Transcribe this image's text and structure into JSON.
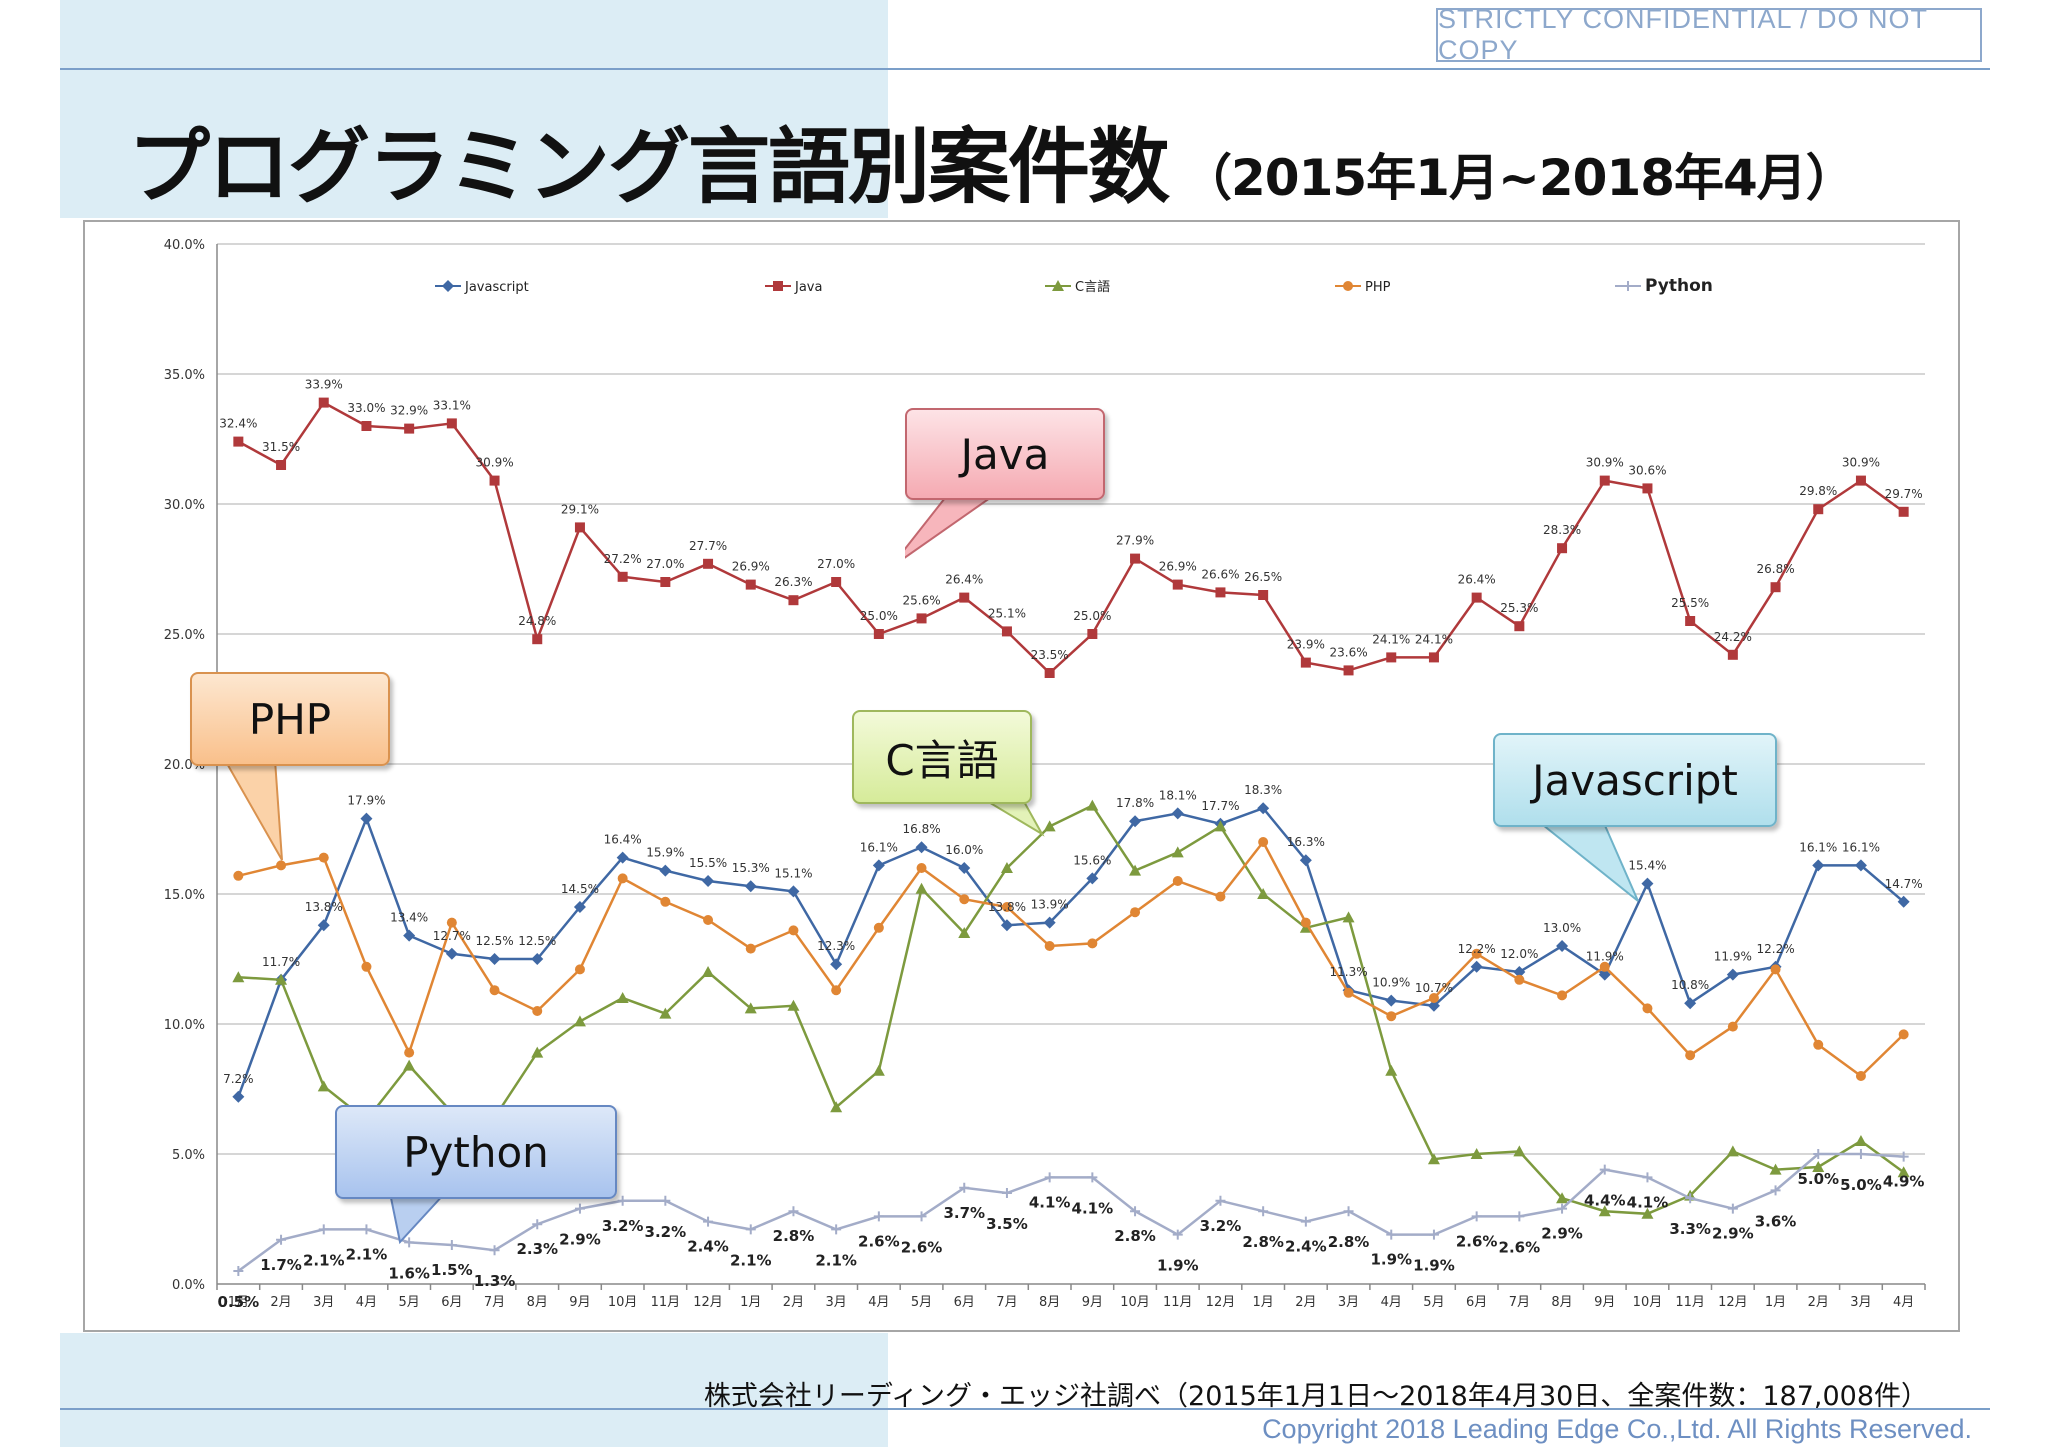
{
  "header": {
    "confidential": "STRICTLY CONFIDENTIAL  /  DO NOT COPY",
    "title_main": "プログラミング言語別案件数",
    "title_sub": "（2015年1月~2018年4月）"
  },
  "footer": {
    "source": "株式会社リーディング・エッジ社調べ（2015年1月1日～2018年4月30日、全案件数：187,008件）",
    "copyright": "Copyright 2018 Leading Edge Co.,Ltd. All Rights Reserved."
  },
  "callouts": {
    "java": "Java",
    "php": "PHP",
    "c": "C言語",
    "javascript": "Javascript",
    "python": "Python"
  },
  "chart_data": {
    "type": "line",
    "title": "",
    "xlabel": "",
    "ylabel": "",
    "ylim": [
      0,
      40
    ],
    "y_ticks": [
      "0.0%",
      "5.0%",
      "10.0%",
      "15.0%",
      "20.0%",
      "25.0%",
      "30.0%",
      "35.0%",
      "40.0%"
    ],
    "x": [
      "1月",
      "2月",
      "3月",
      "4月",
      "5月",
      "6月",
      "7月",
      "8月",
      "9月",
      "10月",
      "11月",
      "12月",
      "1月",
      "2月",
      "3月",
      "4月",
      "5月",
      "6月",
      "7月",
      "8月",
      "9月",
      "10月",
      "11月",
      "12月",
      "1月",
      "2月",
      "3月",
      "4月",
      "5月",
      "6月",
      "7月",
      "8月",
      "9月",
      "10月",
      "11月",
      "12月",
      "1月",
      "2月",
      "3月",
      "4月"
    ],
    "grid": true,
    "legend_position": "top",
    "series": [
      {
        "name": "Javascript",
        "color": "#3f68a4",
        "marker": "diamond",
        "values": [
          7.2,
          11.7,
          13.8,
          17.9,
          13.4,
          12.7,
          12.5,
          12.5,
          14.5,
          16.4,
          15.9,
          15.5,
          15.3,
          15.1,
          12.3,
          16.1,
          16.8,
          16.0,
          13.8,
          13.9,
          15.6,
          17.8,
          18.1,
          17.7,
          18.3,
          16.3,
          11.3,
          10.9,
          10.7,
          12.2,
          12.0,
          13.0,
          11.9,
          15.4,
          10.8,
          11.9,
          12.2,
          16.1,
          16.1,
          14.7
        ],
        "labels": [
          "7.2%",
          "11.7%",
          "13.8%",
          "17.9%",
          "13.4%",
          "12.7%",
          "12.5%",
          "12.5%",
          "14.5%",
          "16.4%",
          "15.9%",
          "15.5%",
          "15.3%",
          "15.1%",
          "12.3%",
          "16.1%",
          "16.8%",
          "16.0%",
          "13.8%",
          "13.9%",
          "15.6%",
          "17.8%",
          "18.1%",
          "17.7%",
          "18.3%",
          "16.3%",
          "11.3%",
          "10.9%",
          "10.7%",
          "12.2%",
          "12.0%",
          "13.0%",
          "11.9%",
          "15.4%",
          "10.8%",
          "11.9%",
          "12.2%",
          "16.1%",
          "16.1%",
          "14.7%"
        ]
      },
      {
        "name": "Java",
        "color": "#b0393b",
        "marker": "square",
        "values": [
          32.4,
          31.5,
          33.9,
          33.0,
          32.9,
          33.1,
          30.9,
          24.8,
          29.1,
          27.2,
          27.0,
          27.7,
          26.9,
          26.3,
          27.0,
          25.0,
          25.6,
          26.4,
          25.1,
          23.5,
          25.0,
          27.9,
          26.9,
          26.6,
          26.5,
          23.9,
          23.6,
          24.1,
          24.1,
          26.4,
          25.3,
          28.3,
          30.9,
          30.6,
          25.5,
          24.2,
          26.8,
          29.8,
          30.9,
          29.7
        ],
        "labels": [
          "32.4%",
          "31.5%",
          "33.9%",
          "33.0%",
          "32.9%",
          "33.1%",
          "30.9%",
          "24.8%",
          "29.1%",
          "27.2%",
          "27.0%",
          "27.7%",
          "26.9%",
          "26.3%",
          "27.0%",
          "25.0%",
          "25.6%",
          "26.4%",
          "25.1%",
          "23.5%",
          "25.0%",
          "27.9%",
          "26.9%",
          "26.6%",
          "26.5%",
          "23.9%",
          "23.6%",
          "24.1%",
          "24.1%",
          "26.4%",
          "25.3%",
          "28.3%",
          "30.9%",
          "30.6%",
          "25.5%",
          "24.2%",
          "26.8%",
          "29.8%",
          "30.9%",
          "29.7%"
        ]
      },
      {
        "name": "C言語",
        "color": "#7d9a3e",
        "marker": "triangle",
        "values": [
          11.8,
          11.7,
          7.6,
          6.3,
          8.4,
          6.6,
          6.4,
          8.9,
          10.1,
          11.0,
          10.4,
          12.0,
          10.6,
          10.7,
          6.8,
          8.2,
          15.2,
          13.5,
          16.0,
          17.6,
          18.4,
          15.9,
          16.6,
          17.6,
          15.0,
          13.7,
          14.1,
          8.2,
          4.8,
          5.0,
          5.1,
          3.3,
          2.8,
          2.7,
          3.4,
          5.1,
          4.4,
          4.5,
          5.5,
          4.3
        ],
        "labels": []
      },
      {
        "name": "PHP",
        "color": "#e08634",
        "marker": "circle",
        "values": [
          15.7,
          16.1,
          16.4,
          12.2,
          8.9,
          13.9,
          11.3,
          10.5,
          12.1,
          15.6,
          14.7,
          14.0,
          12.9,
          13.6,
          11.3,
          13.7,
          16.0,
          14.8,
          14.5,
          13.0,
          13.1,
          14.3,
          15.5,
          14.9,
          17.0,
          13.9,
          11.2,
          10.3,
          11.0,
          12.7,
          11.7,
          11.1,
          12.2,
          10.6,
          8.8,
          9.9,
          12.1,
          9.2,
          8.0,
          9.6
        ],
        "labels": []
      },
      {
        "name": "Python",
        "color": "#a3acc8",
        "marker": "plus",
        "values": [
          0.5,
          1.7,
          2.1,
          2.1,
          1.6,
          1.5,
          1.3,
          2.3,
          2.9,
          3.2,
          3.2,
          2.4,
          2.1,
          2.8,
          2.1,
          2.6,
          2.6,
          3.7,
          3.5,
          4.1,
          4.1,
          2.8,
          1.9,
          3.2,
          2.8,
          2.4,
          2.8,
          1.9,
          1.9,
          2.6,
          2.6,
          2.9,
          4.4,
          4.1,
          3.3,
          2.9,
          3.6,
          5.0,
          5.0,
          4.9
        ],
        "labels": [
          "0.5%",
          "1.7%",
          "2.1%",
          "2.1%",
          "1.6%",
          "1.5%",
          "1.3%",
          "2.3%",
          "2.9%",
          "3.2%",
          "3.2%",
          "2.4%",
          "2.1%",
          "2.8%",
          "2.1%",
          "2.6%",
          "2.6%",
          "3.7%",
          "3.5%",
          "4.1%",
          "4.1%",
          "2.8%",
          "1.9%",
          "3.2%",
          "2.8%",
          "2.4%",
          "2.8%",
          "1.9%",
          "1.9%",
          "2.6%",
          "2.6%",
          "2.9%",
          "4.4%",
          "4.1%",
          "3.3%",
          "2.9%",
          "3.6%",
          "5.0%",
          "5.0%",
          "4.9%"
        ]
      }
    ]
  }
}
